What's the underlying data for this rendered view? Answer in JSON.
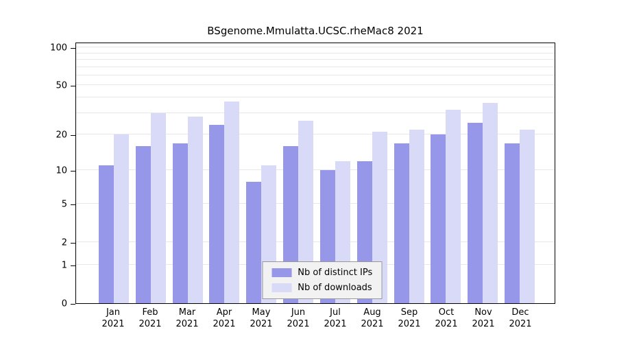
{
  "title": "BSgenome.Mmulatta.UCSC.rheMac8 2021",
  "chart_data": {
    "type": "bar",
    "title": "BSgenome.Mmulatta.UCSC.rheMac8 2021",
    "yscale": "log1p",
    "ylim": [
      0,
      100
    ],
    "y_ticks": [
      0,
      1,
      2,
      5,
      10,
      20,
      50,
      100
    ],
    "grid_values": [
      1,
      2,
      5,
      10,
      20,
      30,
      40,
      50,
      60,
      70,
      80,
      90,
      100
    ],
    "grid": true,
    "legend_position": "bottom-center",
    "categories": [
      "Jan 2021",
      "Feb 2021",
      "Mar 2021",
      "Apr 2021",
      "May 2021",
      "Jun 2021",
      "Jul 2021",
      "Aug 2021",
      "Sep 2021",
      "Oct 2021",
      "Nov 2021",
      "Dec 2021"
    ],
    "series": [
      {
        "name": "Nb of distinct IPs",
        "color": "#9697e8",
        "values": [
          11,
          16,
          17,
          24,
          8,
          16,
          10,
          12,
          17,
          20,
          25,
          17
        ]
      },
      {
        "name": "Nb of downloads",
        "color": "#d9daf8",
        "values": [
          20,
          30,
          28,
          37,
          11,
          26,
          12,
          21,
          22,
          32,
          36,
          22
        ]
      }
    ]
  }
}
